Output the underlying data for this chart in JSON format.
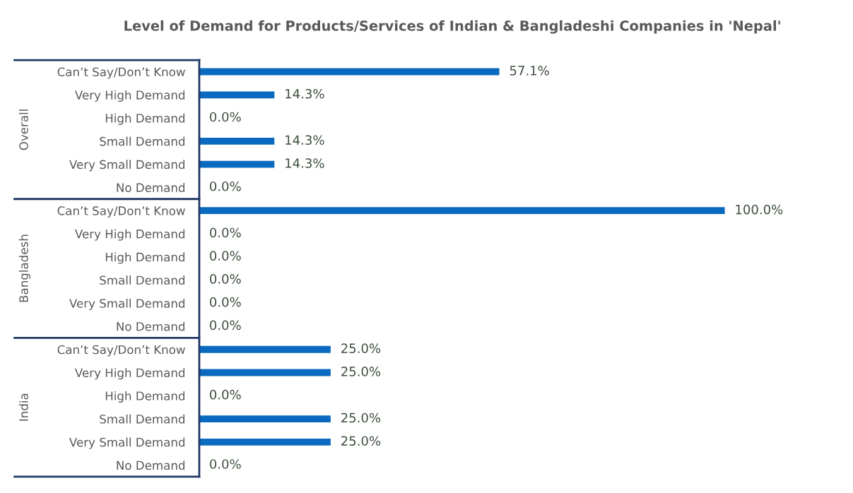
{
  "chart_data": {
    "type": "bar",
    "orientation": "horizontal",
    "title": "Level of Demand for Products/Services of Indian & Bangladeshi Companies in 'Nepal'",
    "categories": [
      "Can’t Say/Don’t Know",
      "Very High Demand",
      "High Demand",
      "Small Demand",
      "Very Small Demand",
      "No Demand",
      "Can’t Say/Don’t Know",
      "Very High Demand",
      "High Demand",
      "Small Demand",
      "Very Small Demand",
      "No Demand",
      "Can’t Say/Don’t Know",
      "Very High Demand",
      "High Demand",
      "Small Demand",
      "Very Small Demand",
      "No Demand"
    ],
    "values": [
      57.1,
      14.3,
      0,
      14.3,
      14.3,
      0,
      100,
      0,
      0,
      0,
      0,
      0,
      25,
      25,
      0,
      25,
      25,
      0
    ],
    "value_labels": [
      "57.1%",
      "14.3%",
      "0.0%",
      "14.3%",
      "14.3%",
      "0.0%",
      "100.0%",
      "0.0%",
      "0.0%",
      "0.0%",
      "0.0%",
      "0.0%",
      "25.0%",
      "25.0%",
      "0.0%",
      "25.0%",
      "25.0%",
      "0.0%"
    ],
    "color": "#0a6abf",
    "annotations": [
      "Overall",
      "Bangladesh",
      "India"
    ],
    "grid": false,
    "legend": false
  }
}
